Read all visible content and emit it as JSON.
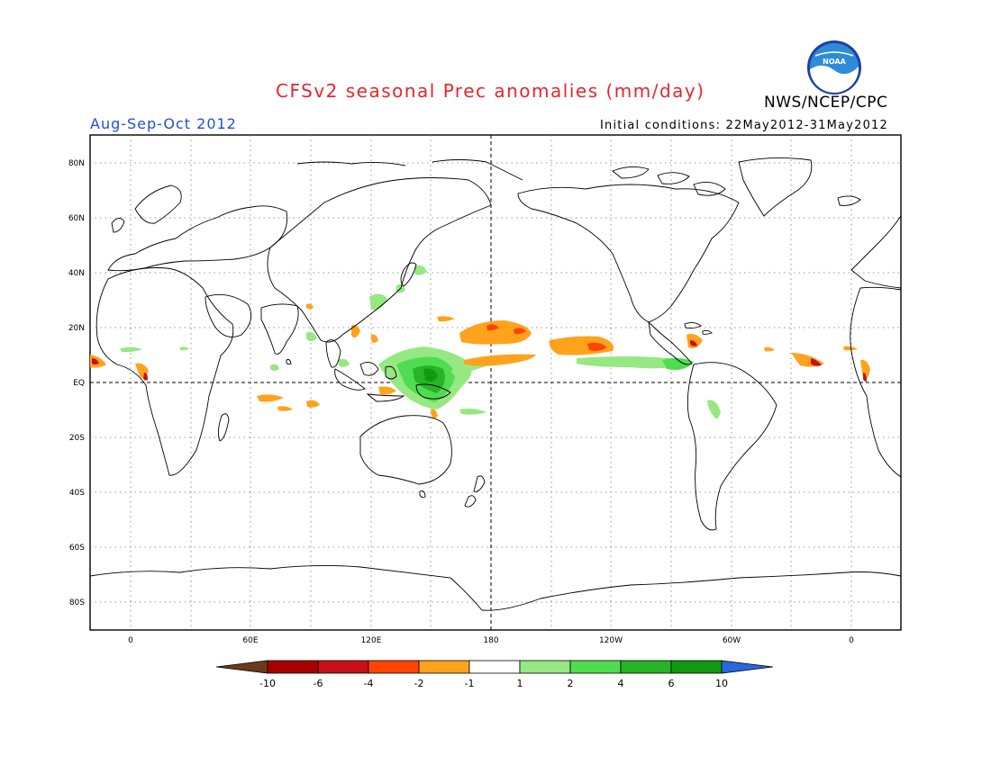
{
  "header": {
    "title": "CFSv2 seasonal Prec anomalies (mm/day)",
    "season": "Aug-Sep-Oct 2012",
    "initial_conditions": "Initial conditions: 22May2012-31May2012",
    "agency": "NWS/NCEP/CPC",
    "logo_text": "NOAA"
  },
  "map": {
    "lat_labels": [
      "80N",
      "60N",
      "40N",
      "20N",
      "EQ",
      "20S",
      "40S",
      "60S",
      "80S"
    ],
    "lon_labels": [
      "0",
      "60E",
      "120E",
      "180",
      "120W",
      "60W",
      "0"
    ]
  },
  "colorbar": {
    "labels": [
      "-10",
      "-6",
      "-4",
      "-2",
      "-1",
      "1",
      "2",
      "4",
      "6",
      "10"
    ],
    "colors": [
      "#6b3a1e",
      "#a80000",
      "#c8101a",
      "#ff4500",
      "#ffa21c",
      "#ffffff",
      "#96e882",
      "#50dc50",
      "#28b428",
      "#129912",
      "#2a66e0"
    ]
  }
}
